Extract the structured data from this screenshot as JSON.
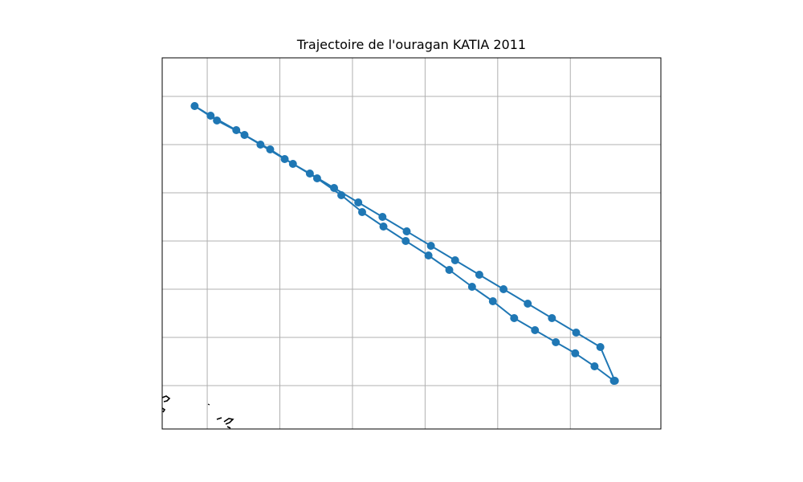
{
  "title": "Trajectoire de l'ouragan KATIA 2011",
  "style": {
    "track_color": "#1f77b4",
    "grid_color": "#b0b0b0",
    "frame_color": "#000000",
    "coast_color": "#000000"
  },
  "map": {
    "projection": "plate-carree",
    "grid": true,
    "track_marker": "circle",
    "coastline": "partial, bottom-left corner"
  },
  "chart_data": {
    "type": "track",
    "title": "Trajectoire de l'ouragan KATIA 2011",
    "xlim": [
      0,
      10.3
    ],
    "ylim": [
      0,
      7.7
    ],
    "grid": true,
    "gridlines_x": [
      0.93,
      2.43,
      3.93,
      5.43,
      6.93,
      8.43
    ],
    "gridlines_y": [
      0.9,
      1.9,
      2.9,
      3.9,
      4.9,
      5.9,
      6.9
    ],
    "track": [
      {
        "x": 9.33,
        "y": 1.0
      },
      {
        "x": 8.93,
        "y": 1.3
      },
      {
        "x": 8.53,
        "y": 1.57
      },
      {
        "x": 8.13,
        "y": 1.8
      },
      {
        "x": 7.7,
        "y": 2.05
      },
      {
        "x": 7.27,
        "y": 2.3
      },
      {
        "x": 6.83,
        "y": 2.65
      },
      {
        "x": 6.4,
        "y": 2.95
      },
      {
        "x": 5.93,
        "y": 3.3
      },
      {
        "x": 5.5,
        "y": 3.6
      },
      {
        "x": 5.03,
        "y": 3.9
      },
      {
        "x": 4.57,
        "y": 4.2
      },
      {
        "x": 4.13,
        "y": 4.5
      },
      {
        "x": 3.7,
        "y": 4.85
      },
      {
        "x": 3.2,
        "y": 5.2
      },
      {
        "x": 2.7,
        "y": 5.5
      },
      {
        "x": 2.23,
        "y": 5.8
      },
      {
        "x": 1.7,
        "y": 6.1
      },
      {
        "x": 1.13,
        "y": 6.4
      },
      {
        "x": 0.67,
        "y": 6.7
      },
      {
        "x": 1.0,
        "y": 6.5
      },
      {
        "x": 1.53,
        "y": 6.2
      },
      {
        "x": 2.03,
        "y": 5.9
      },
      {
        "x": 2.53,
        "y": 5.6
      },
      {
        "x": 3.05,
        "y": 5.3
      },
      {
        "x": 3.55,
        "y": 5.0
      },
      {
        "x": 4.05,
        "y": 4.7
      },
      {
        "x": 4.55,
        "y": 4.4
      },
      {
        "x": 5.05,
        "y": 4.1
      },
      {
        "x": 5.55,
        "y": 3.8
      },
      {
        "x": 6.05,
        "y": 3.5
      },
      {
        "x": 6.55,
        "y": 3.2
      },
      {
        "x": 7.05,
        "y": 2.9
      },
      {
        "x": 7.55,
        "y": 2.6
      },
      {
        "x": 8.05,
        "y": 2.3
      },
      {
        "x": 8.55,
        "y": 2.0
      },
      {
        "x": 9.05,
        "y": 1.7
      },
      {
        "x": 9.35,
        "y": 1.0
      }
    ]
  }
}
